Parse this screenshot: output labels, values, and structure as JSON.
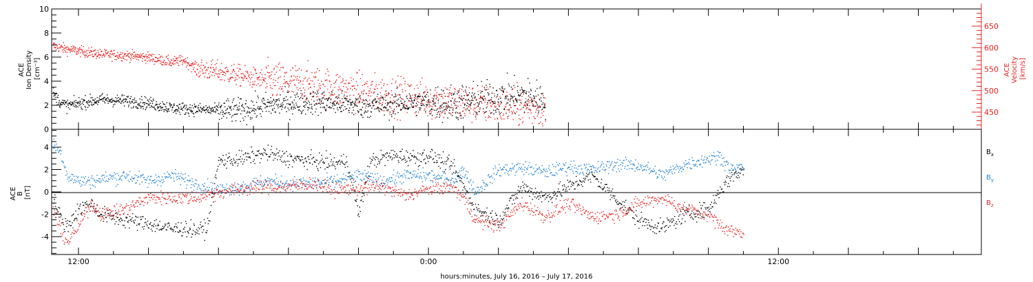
{
  "chart_data": [
    {
      "type": "scatter",
      "panel": "top",
      "ylabel_lines": [
        "ACE",
        "Ion Density",
        "[cm⁻³]"
      ],
      "ylim": [
        0,
        10
      ],
      "yticks": [
        "0",
        "2",
        "4",
        "6",
        "8",
        "10"
      ],
      "right_axis": {
        "ylabel_lines": [
          "ACE",
          "Velocity",
          "[km/s]"
        ],
        "ylim": [
          410,
          690
        ],
        "yticks": [
          "450",
          "500",
          "550",
          "600",
          "650"
        ],
        "color": "#e8201e"
      },
      "series": [
        {
          "key": "density",
          "axis": "left",
          "color": "#000000",
          "trend": [
            [
              -2.2,
              3.0
            ],
            [
              -1.5,
              2.2
            ],
            [
              -1,
              2.0
            ],
            [
              0,
              2.2
            ],
            [
              2,
              2.5
            ],
            [
              4,
              2.4
            ],
            [
              6,
              2.2
            ],
            [
              8,
              1.8
            ],
            [
              10,
              1.7
            ],
            [
              12,
              1.6
            ],
            [
              14,
              1.6
            ],
            [
              16,
              2.0
            ],
            [
              18,
              2.2
            ],
            [
              20,
              2.3
            ],
            [
              22,
              2.2
            ],
            [
              24,
              2.0
            ],
            [
              26,
              2.0
            ],
            [
              28,
              2.2
            ],
            [
              30,
              2.3
            ],
            [
              32,
              2.2
            ],
            [
              34,
              2.4
            ],
            [
              36,
              2.7
            ],
            [
              38,
              2.8
            ],
            [
              40,
              2.5
            ]
          ]
        },
        {
          "key": "velocity",
          "axis": "right",
          "color": "#e8201e",
          "trend": [
            [
              -2.2,
              605
            ],
            [
              -1,
              597
            ],
            [
              0,
              593
            ],
            [
              2,
              585
            ],
            [
              4,
              583
            ],
            [
              6,
              578
            ],
            [
              8,
              567
            ],
            [
              9,
              572
            ],
            [
              10,
              553
            ],
            [
              12,
              545
            ],
            [
              14,
              535
            ],
            [
              16,
              525
            ],
            [
              18,
              520
            ],
            [
              20,
              515
            ],
            [
              22,
              505
            ],
            [
              24,
              498
            ],
            [
              26,
              492
            ],
            [
              28,
              486
            ],
            [
              30,
              480
            ],
            [
              32,
              474
            ],
            [
              34,
              470
            ],
            [
              36,
              466
            ],
            [
              38,
              462
            ],
            [
              40,
              463
            ]
          ]
        }
      ]
    },
    {
      "type": "scatter",
      "panel": "bottom",
      "ylabel_lines": [
        "ACE",
        "B",
        "[nT]"
      ],
      "ylim": [
        -5.6,
        5.6
      ],
      "yticks": [
        "-4",
        "-2",
        "0",
        "2",
        "4"
      ],
      "series": [
        {
          "key": "Bx",
          "label": "B",
          "label_sub": "x",
          "color": "#000000",
          "trend": [
            [
              -2.2,
              -0.5
            ],
            [
              -1.5,
              -2.5
            ],
            [
              -1,
              -3.0
            ],
            [
              0,
              -1.5
            ],
            [
              1,
              -1.0
            ],
            [
              2,
              -2.0
            ],
            [
              4,
              -2.5
            ],
            [
              6,
              -2.8
            ],
            [
              8,
              -3.3
            ],
            [
              9,
              -3.2
            ],
            [
              10,
              -3.4
            ],
            [
              11,
              -3.2
            ],
            [
              12,
              2.8
            ],
            [
              14,
              3.0
            ],
            [
              16,
              3.5
            ],
            [
              18,
              3.0
            ],
            [
              20,
              2.8
            ],
            [
              22,
              2.6
            ],
            [
              23,
              2.8
            ],
            [
              24,
              -2.0
            ],
            [
              25,
              2.8
            ],
            [
              27,
              3.3
            ],
            [
              29,
              3.1
            ],
            [
              30,
              3.3
            ],
            [
              32,
              2.3
            ],
            [
              33,
              0.5
            ],
            [
              34,
              -1.5
            ],
            [
              36,
              -2.5
            ],
            [
              38,
              0.5
            ],
            [
              40,
              -0.5
            ],
            [
              42,
              0.5
            ],
            [
              44,
              1.5
            ],
            [
              46,
              -0.5
            ],
            [
              48,
              -2.5
            ],
            [
              50,
              -3.2
            ],
            [
              52,
              -2.0
            ],
            [
              54,
              -1.5
            ],
            [
              55,
              0.2
            ],
            [
              56,
              1.5
            ],
            [
              57,
              2.0
            ]
          ]
        },
        {
          "key": "By",
          "label": "B",
          "label_sub": "y",
          "color": "#1e7fd4",
          "trend": [
            [
              -2.2,
              4.3
            ],
            [
              -1.5,
              3.5
            ],
            [
              -1,
              1.5
            ],
            [
              0,
              1.0
            ],
            [
              1,
              1.0
            ],
            [
              2,
              1.2
            ],
            [
              4,
              1.5
            ],
            [
              6,
              1.0
            ],
            [
              8,
              1.5
            ],
            [
              10,
              0.8
            ],
            [
              11,
              0.5
            ],
            [
              12,
              0.2
            ],
            [
              14,
              0.5
            ],
            [
              16,
              1.0
            ],
            [
              18,
              0.8
            ],
            [
              20,
              0.8
            ],
            [
              22,
              1.0
            ],
            [
              24,
              1.5
            ],
            [
              26,
              1.0
            ],
            [
              28,
              1.5
            ],
            [
              30,
              1.5
            ],
            [
              32,
              1.0
            ],
            [
              33,
              2.0
            ],
            [
              34,
              0.0
            ],
            [
              36,
              2.0
            ],
            [
              38,
              2.2
            ],
            [
              40,
              1.8
            ],
            [
              42,
              2.3
            ],
            [
              44,
              2.0
            ],
            [
              46,
              2.5
            ],
            [
              48,
              2.4
            ],
            [
              49,
              2.0
            ],
            [
              50,
              1.5
            ],
            [
              52,
              2.5
            ],
            [
              54,
              3.0
            ],
            [
              55,
              3.2
            ],
            [
              56,
              2.0
            ],
            [
              57,
              2.2
            ]
          ]
        },
        {
          "key": "Bz",
          "label": "B",
          "label_sub": "z",
          "color": "#e8201e",
          "trend": [
            [
              -2.2,
              -1.5
            ],
            [
              -1.5,
              -3.5
            ],
            [
              -1,
              -4.5
            ],
            [
              0,
              -3.0
            ],
            [
              1,
              -1.0
            ],
            [
              2,
              -2.0
            ],
            [
              4,
              -1.5
            ],
            [
              6,
              -0.5
            ],
            [
              8,
              -0.5
            ],
            [
              10,
              -0.5
            ],
            [
              11,
              -0.2
            ],
            [
              12,
              0.0
            ],
            [
              14,
              0.3
            ],
            [
              16,
              0.5
            ],
            [
              18,
              0.5
            ],
            [
              20,
              0.8
            ],
            [
              22,
              0.2
            ],
            [
              24,
              0.4
            ],
            [
              26,
              0.5
            ],
            [
              28,
              -0.3
            ],
            [
              30,
              0.3
            ],
            [
              32,
              0.5
            ],
            [
              33,
              -0.5
            ],
            [
              34,
              -2.5
            ],
            [
              36,
              -3.0
            ],
            [
              38,
              -1.0
            ],
            [
              40,
              -2.2
            ],
            [
              42,
              -1.0
            ],
            [
              44,
              -2.2
            ],
            [
              46,
              -2.0
            ],
            [
              48,
              -1.0
            ],
            [
              50,
              -0.5
            ],
            [
              52,
              -1.5
            ],
            [
              54,
              -2.0
            ],
            [
              55,
              -3.0
            ],
            [
              56,
              -3.5
            ],
            [
              57,
              -3.6
            ]
          ]
        }
      ]
    }
  ],
  "x_axis": {
    "xlim": [
      -2.3,
      77.4
    ],
    "tick_labels": [
      {
        "hour": 0,
        "label": "12:00"
      },
      {
        "hour": 30,
        "label": "0:00"
      },
      {
        "hour": 60,
        "label": "12:00"
      }
    ],
    "xlabel": "hours:minutes, July 16, 2016 – July 17, 2016"
  },
  "colors": {
    "black": "#000000",
    "red": "#e8201e",
    "blue": "#1e7fd4"
  }
}
